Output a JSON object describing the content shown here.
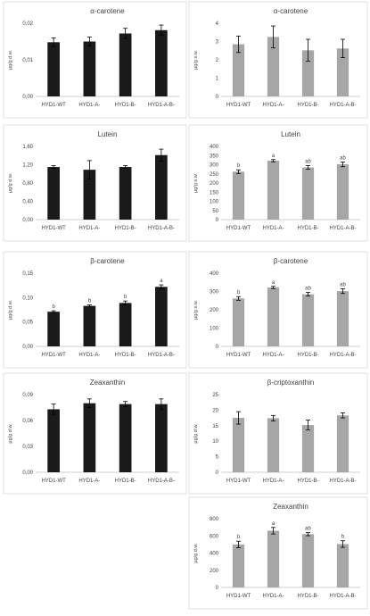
{
  "chart_data": [
    {
      "type": "bar",
      "title": "α-carotene",
      "ylabel": "μg/g d.w.",
      "categories": [
        "HYD1-WT",
        "HYD1-A-",
        "HYD1-B-",
        "HYD1-A-B-"
      ],
      "values": [
        0.0148,
        0.015,
        0.0172,
        0.0181
      ],
      "errors": [
        0.0012,
        0.0012,
        0.0014,
        0.0014
      ],
      "ylim": [
        0,
        0.02
      ],
      "yticks": [
        "0,00",
        "0,01",
        "0,02"
      ],
      "letters": [
        "",
        "",
        "",
        ""
      ],
      "bar_color": "#1a1a1a"
    },
    {
      "type": "bar",
      "title": "α-carotene",
      "ylabel": "μg/g s.w.",
      "categories": [
        "HYD1-WT",
        "HYD1-A-",
        "HYD1-B-",
        "HYD1-A-B-"
      ],
      "values": [
        2.85,
        3.25,
        2.52,
        2.62
      ],
      "errors": [
        0.45,
        0.6,
        0.6,
        0.5
      ],
      "ylim": [
        0,
        4
      ],
      "yticks": [
        "0",
        "1",
        "2",
        "3",
        "4"
      ],
      "letters": [
        "",
        "",
        "",
        ""
      ],
      "bar_color": "#a6a6a6"
    },
    {
      "type": "bar",
      "title": "Lutein",
      "ylabel": "μg/g d.w.",
      "categories": [
        "HYD1-WT",
        "HYD1-A-",
        "HYD1-B-",
        "HYD1-A-B-"
      ],
      "values": [
        1.15,
        1.09,
        1.15,
        1.41
      ],
      "errors": [
        0.03,
        0.2,
        0.03,
        0.13
      ],
      "ylim": [
        0,
        1.6
      ],
      "yticks": [
        "0,00",
        "0,40",
        "0,80",
        "1,20",
        "1,60"
      ],
      "letters": [
        "",
        "",
        "",
        ""
      ],
      "bar_color": "#1a1a1a"
    },
    {
      "type": "bar",
      "title": "Lutein",
      "ylabel": "μg/g s.w.",
      "categories": [
        "HYD1-WT",
        "HYD1-A-",
        "HYD1-B-",
        "HYD1-A-B-"
      ],
      "values": [
        262,
        322,
        285,
        302
      ],
      "errors": [
        10,
        6,
        10,
        13
      ],
      "ylim": [
        0,
        400
      ],
      "yticks": [
        "0",
        "50",
        "100",
        "150",
        "200",
        "250",
        "300",
        "350",
        "400"
      ],
      "letters": [
        "b",
        "a",
        "ab",
        "ab"
      ],
      "bar_color": "#a6a6a6"
    },
    {
      "type": "bar",
      "title": "β-carotene",
      "ylabel": "μg/g d.w.",
      "categories": [
        "HYD1-WT",
        "HYD1-A-",
        "HYD1-B-",
        "HYD1-A-B-"
      ],
      "values": [
        0.071,
        0.083,
        0.089,
        0.122
      ],
      "errors": [
        0.002,
        0.002,
        0.004,
        0.004
      ],
      "ylim": [
        0,
        0.15
      ],
      "yticks": [
        "0,00",
        "0,05",
        "0,10",
        "0,15"
      ],
      "letters": [
        "b",
        "b",
        "b",
        "a"
      ],
      "bar_color": "#1a1a1a"
    },
    {
      "type": "bar",
      "title": "β-carotene",
      "ylabel": "μg/g s.w.",
      "categories": [
        "HYD1-WT",
        "HYD1-A-",
        "HYD1-B-",
        "HYD1-A-B-"
      ],
      "values": [
        262,
        322,
        285,
        302
      ],
      "errors": [
        10,
        6,
        10,
        13
      ],
      "ylim": [
        0,
        400
      ],
      "yticks": [
        "0",
        "100",
        "200",
        "300",
        "400"
      ],
      "letters": [
        "b",
        "a",
        "ab",
        "ab"
      ],
      "bar_color": "#a6a6a6"
    },
    {
      "type": "bar",
      "title": "Zeaxanthin",
      "ylabel": "μg/g d.w.",
      "categories": [
        "HYD1-WT",
        "HYD1-A-",
        "HYD1-B-",
        "HYD1-A-B-"
      ],
      "values": [
        0.073,
        0.08,
        0.079,
        0.079
      ],
      "errors": [
        0.006,
        0.005,
        0.003,
        0.006
      ],
      "ylim": [
        0,
        0.09
      ],
      "yticks": [
        "0,00",
        "0,03",
        "0,06",
        "0,09"
      ],
      "letters": [
        "",
        "",
        "",
        ""
      ],
      "bar_color": "#1a1a1a"
    },
    {
      "type": "bar",
      "title": "β-criptoxanthin",
      "ylabel": "μg/g d.w.",
      "categories": [
        "HYD1-WT",
        "HYD1-A-",
        "HYD1-B-",
        "HYD1-A-B-"
      ],
      "values": [
        17.5,
        17.4,
        15.2,
        18.3
      ],
      "errors": [
        2.0,
        0.9,
        1.6,
        0.8
      ],
      "ylim": [
        0,
        25
      ],
      "yticks": [
        "0",
        "5",
        "10",
        "15",
        "20",
        "25"
      ],
      "letters": [
        "",
        "",
        "",
        ""
      ],
      "bar_color": "#a6a6a6"
    },
    {
      "type": "bar",
      "title": "Zeaxanthin",
      "ylabel": "μg/g d.w.",
      "categories": [
        "HYD1-WT",
        "HYD1-A-",
        "HYD1-B-",
        "HYD1-A-B-"
      ],
      "values": [
        500,
        660,
        620,
        505
      ],
      "errors": [
        38,
        38,
        18,
        38
      ],
      "ylim": [
        0,
        800
      ],
      "yticks": [
        "0",
        "200",
        "400",
        "600",
        "800"
      ],
      "letters": [
        "b",
        "a",
        "ab",
        "b"
      ],
      "bar_color": "#a6a6a6"
    }
  ]
}
